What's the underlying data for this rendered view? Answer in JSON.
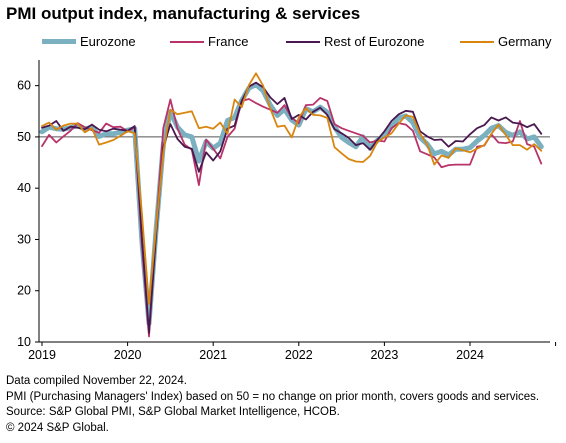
{
  "chart_data": {
    "type": "line",
    "title": "PMI output index, manufacturing & services",
    "x_ticks": [
      "2019",
      "2020",
      "2021",
      "2022",
      "2023",
      "2024"
    ],
    "ylim": [
      10,
      65
    ],
    "y_ticks": [
      10,
      20,
      30,
      40,
      50,
      60
    ],
    "reference_line": 50,
    "x_start": "2019-01",
    "x_end": "2024-11",
    "series": [
      {
        "name": "Eurozone",
        "color": "#7ab0c0",
        "values": [
          51.0,
          51.9,
          51.6,
          51.5,
          51.8,
          52.2,
          51.5,
          51.9,
          50.1,
          50.6,
          50.6,
          50.9,
          51.3,
          51.6,
          29.7,
          13.6,
          31.9,
          48.5,
          54.9,
          51.9,
          50.4,
          50.0,
          45.3,
          49.1,
          47.8,
          48.8,
          53.2,
          53.8,
          57.1,
          59.5,
          60.2,
          59.0,
          56.2,
          54.2,
          55.4,
          53.3,
          52.3,
          55.5,
          54.9,
          55.8,
          54.8,
          52.0,
          49.9,
          48.9,
          48.1,
          50.0,
          47.8,
          49.3,
          50.3,
          52.0,
          53.7,
          54.1,
          52.8,
          49.9,
          48.6,
          46.7,
          47.2,
          46.5,
          47.6,
          47.6,
          47.9,
          49.2,
          50.3,
          51.7,
          52.2,
          50.9,
          50.3,
          51.0,
          49.6,
          50.0,
          48.1
        ]
      },
      {
        "name": "France",
        "color": "#b8336a",
        "values": [
          48.2,
          50.4,
          48.9,
          50.1,
          51.2,
          52.7,
          51.9,
          51.3,
          50.8,
          52.6,
          51.9,
          52.0,
          51.1,
          51.9,
          28.9,
          11.1,
          32.1,
          51.7,
          57.3,
          51.6,
          48.5,
          47.5,
          40.6,
          49.5,
          47.7,
          45.8,
          50.0,
          51.6,
          57.0,
          57.4,
          56.6,
          55.9,
          55.3,
          54.7,
          56.2,
          53.7,
          52.7,
          56.2,
          56.3,
          57.6,
          57.0,
          52.5,
          51.7,
          51.2,
          50.7,
          50.2,
          48.9,
          49.3,
          49.1,
          51.7,
          52.7,
          52.4,
          51.2,
          47.2,
          46.6,
          46.0,
          44.1,
          44.5,
          44.6,
          44.6,
          44.6,
          48.1,
          48.3,
          50.5,
          48.9,
          48.8,
          49.1,
          53.1,
          48.6,
          48.1,
          44.8
        ]
      },
      {
        "name": "Rest of Eurozone",
        "color": "#4a1850",
        "values": [
          51.8,
          52.2,
          53.1,
          51.2,
          52.0,
          51.8,
          51.5,
          52.4,
          51.4,
          51.1,
          51.6,
          51.4,
          51.2,
          52.1,
          30.5,
          11.8,
          30.9,
          48.0,
          52.5,
          49.6,
          48.1,
          47.7,
          43.2,
          47.0,
          45.4,
          47.2,
          51.6,
          52.2,
          57.0,
          59.8,
          60.6,
          59.7,
          57.7,
          56.4,
          57.6,
          53.5,
          54.3,
          53.4,
          54.9,
          55.7,
          54.3,
          51.5,
          50.7,
          49.8,
          48.4,
          48.8,
          47.5,
          49.4,
          51.1,
          53.1,
          54.4,
          55.1,
          54.9,
          51.1,
          50.1,
          49.4,
          49.5,
          48.1,
          49.2,
          49.1,
          50.5,
          51.7,
          52.3,
          53.8,
          53.2,
          53.8,
          52.8,
          52.6,
          51.9,
          52.5,
          50.6
        ]
      },
      {
        "name": "Germany",
        "color": "#d9860f",
        "values": [
          52.1,
          52.8,
          51.4,
          52.2,
          52.6,
          52.6,
          50.9,
          51.7,
          48.5,
          48.9,
          49.4,
          50.2,
          51.1,
          50.7,
          35.0,
          17.4,
          32.3,
          47.0,
          55.3,
          54.4,
          54.7,
          55.0,
          51.7,
          52.0,
          51.6,
          52.8,
          50.6,
          57.3,
          55.8,
          60.1,
          62.4,
          60.0,
          55.5,
          52.0,
          52.2,
          49.9,
          53.8,
          55.6,
          54.3,
          54.2,
          53.7,
          48.0,
          46.8,
          45.7,
          45.2,
          45.1,
          46.3,
          49.0,
          49.9,
          50.7,
          52.6,
          54.2,
          53.9,
          50.6,
          48.5,
          44.6,
          46.4,
          45.9,
          47.8,
          47.4,
          47.0,
          47.7,
          48.4,
          50.6,
          52.4,
          50.4,
          48.4,
          48.4,
          47.5,
          48.6,
          47.3
        ]
      }
    ],
    "notes": [
      "Data compiled November 22, 2024.",
      "PMI (Purchasing Managers' Index) based on 50 = no change on prior month, covers goods and services.",
      "Source: S&P Global PMI,  S&P Global Market Intelligence,  HCOB.",
      "© 2024 S&P Global."
    ]
  }
}
